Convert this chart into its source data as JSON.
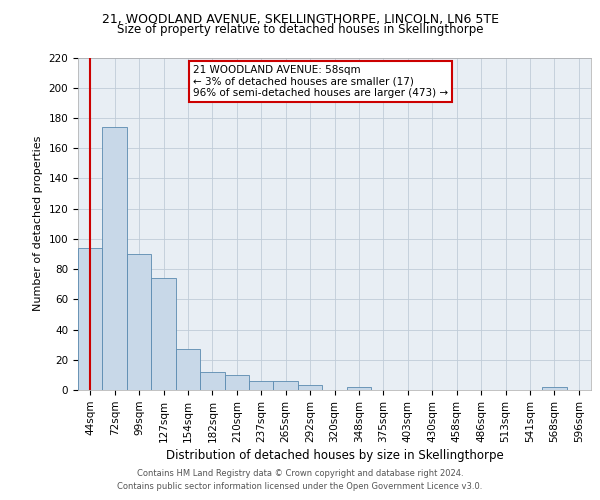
{
  "title1": "21, WOODLAND AVENUE, SKELLINGTHORPE, LINCOLN, LN6 5TE",
  "title2": "Size of property relative to detached houses in Skellingthorpe",
  "xlabel": "Distribution of detached houses by size in Skellingthorpe",
  "ylabel": "Number of detached properties",
  "bar_labels": [
    "44sqm",
    "72sqm",
    "99sqm",
    "127sqm",
    "154sqm",
    "182sqm",
    "210sqm",
    "237sqm",
    "265sqm",
    "292sqm",
    "320sqm",
    "348sqm",
    "375sqm",
    "403sqm",
    "430sqm",
    "458sqm",
    "486sqm",
    "513sqm",
    "541sqm",
    "568sqm",
    "596sqm"
  ],
  "bar_values": [
    94,
    174,
    90,
    74,
    27,
    12,
    10,
    6,
    6,
    3,
    0,
    2,
    0,
    0,
    0,
    0,
    0,
    0,
    0,
    2,
    0
  ],
  "annotation_line1": "21 WOODLAND AVENUE: 58sqm",
  "annotation_line2": "← 3% of detached houses are smaller (17)",
  "annotation_line3": "96% of semi-detached houses are larger (473) →",
  "bar_color": "#c8d8e8",
  "bar_edge_color": "#5a8ab0",
  "line_color": "#cc0000",
  "annotation_box_edge": "#cc0000",
  "grid_color": "#c0ccd8",
  "bg_color": "#e8eef4",
  "footer1": "Contains HM Land Registry data © Crown copyright and database right 2024.",
  "footer2": "Contains public sector information licensed under the Open Government Licence v3.0.",
  "ylim": [
    0,
    220
  ],
  "yticks": [
    0,
    20,
    40,
    60,
    80,
    100,
    120,
    140,
    160,
    180,
    200,
    220
  ],
  "title1_fontsize": 9,
  "title2_fontsize": 8.5,
  "xlabel_fontsize": 8.5,
  "ylabel_fontsize": 8,
  "tick_fontsize": 7.5,
  "annotation_fontsize": 7.5,
  "footer_fontsize": 6
}
